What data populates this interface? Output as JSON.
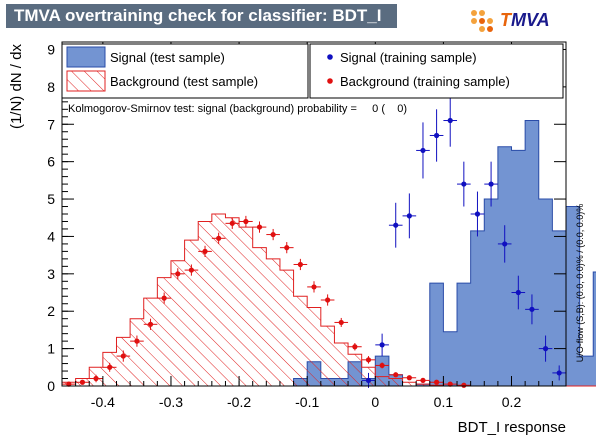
{
  "header": {
    "title": "TMVA overtraining check for classifier: BDT_I"
  },
  "logo": {
    "prefix": "T",
    "suffix": "MVA",
    "accent_color": "#e8640c",
    "dot_color": "#f4a23c"
  },
  "legend": {
    "signal_test": "Signal (test sample)",
    "background_test": "Background (test sample)",
    "signal_train": "Signal (training sample)",
    "background_train": "Background (training sample)"
  },
  "ks_text": "Kolmogorov-Smirnov test: signal (background) probability =     0 (    0)",
  "side_text": "U/O-flow (S,B): (0.0, 0.0)% / (0.0, 0.0)%",
  "colors": {
    "signal_fill": "#7394d2",
    "signal_line": "#2a4ca8",
    "background": "#e02020",
    "train_signal": "#1010c0",
    "train_background": "#e01010",
    "frame": "#000000"
  },
  "chart_data": {
    "type": "histogram",
    "xlabel": "BDT_I response",
    "ylabel": "(1/N) dN / dx",
    "xlim": [
      -0.46,
      0.28
    ],
    "ylim": [
      0,
      9.2
    ],
    "x_ticks": [
      -0.4,
      -0.3,
      -0.2,
      -0.1,
      0,
      0.1,
      0.2
    ],
    "x_tick_labels": [
      "-0.4",
      "-0.3",
      "-0.2",
      "-0.1",
      "0",
      "0.1",
      "0.2"
    ],
    "y_ticks": [
      0,
      1,
      2,
      3,
      4,
      5,
      6,
      7,
      8,
      9
    ],
    "y_tick_labels": [
      "0",
      "1",
      "2",
      "3",
      "4",
      "5",
      "6",
      "7",
      "8",
      "9"
    ],
    "bin_edges_start": -0.46,
    "bin_width": 0.02,
    "series": [
      {
        "name": "Signal (test sample)",
        "kind": "histogram_filled",
        "values": [
          0,
          0,
          0,
          0,
          0,
          0,
          0,
          0,
          0,
          0,
          0,
          0,
          0,
          0,
          0,
          0,
          0,
          0.2,
          0.65,
          0.2,
          0.2,
          0.65,
          0.2,
          0.8,
          0.3,
          0,
          0.05,
          2.75,
          1.45,
          2.75,
          4.15,
          5.0,
          6.4,
          6.3,
          7.1,
          5.0,
          4.15,
          4.8,
          0.8,
          3.05,
          0.8,
          1.75,
          0
        ]
      },
      {
        "name": "Background (test sample)",
        "kind": "histogram_hatched",
        "values": [
          0.1,
          0.2,
          0.5,
          0.9,
          1.3,
          1.8,
          2.35,
          2.9,
          3.35,
          3.9,
          4.4,
          4.6,
          4.5,
          4.25,
          3.7,
          3.4,
          3.1,
          2.4,
          2.1,
          1.6,
          1.15,
          0.85,
          0.5,
          0.25,
          0.2,
          0.1,
          0.05,
          0.02,
          0,
          0,
          0,
          0,
          0,
          0,
          0,
          0,
          0,
          0,
          0,
          0,
          0,
          0,
          0
        ]
      },
      {
        "name": "Signal (training sample)",
        "kind": "points",
        "x": [
          -0.01,
          0.01,
          0.03,
          0.05,
          0.07,
          0.09,
          0.11,
          0.13,
          0.15,
          0.17,
          0.19,
          0.21,
          0.23,
          0.25,
          0.27
        ],
        "y": [
          0.15,
          1.1,
          4.3,
          4.55,
          6.3,
          6.7,
          7.1,
          5.4,
          4.6,
          5.4,
          3.8,
          2.5,
          2.05,
          1.0,
          0.35
        ],
        "err": [
          0.2,
          0.3,
          0.6,
          0.6,
          0.75,
          0.7,
          0.7,
          0.6,
          0.6,
          0.6,
          0.5,
          0.45,
          0.4,
          0.35,
          0.2
        ]
      },
      {
        "name": "Background (training sample)",
        "kind": "points",
        "x": [
          -0.45,
          -0.43,
          -0.41,
          -0.39,
          -0.37,
          -0.35,
          -0.33,
          -0.31,
          -0.29,
          -0.27,
          -0.25,
          -0.23,
          -0.21,
          -0.19,
          -0.17,
          -0.15,
          -0.13,
          -0.11,
          -0.09,
          -0.07,
          -0.05,
          -0.03,
          -0.01,
          0.01,
          0.03,
          0.05,
          0.07,
          0.09,
          0.11,
          0.13
        ],
        "y": [
          0.05,
          0.1,
          0.2,
          0.5,
          0.8,
          1.2,
          1.65,
          2.35,
          3.0,
          3.1,
          3.6,
          3.95,
          4.35,
          4.4,
          4.25,
          4.05,
          3.7,
          3.25,
          2.65,
          2.3,
          1.7,
          1.05,
          0.7,
          0.55,
          0.3,
          0.22,
          0.15,
          0.1,
          0.05,
          0.02
        ],
        "err": [
          0.05,
          0.05,
          0.1,
          0.12,
          0.15,
          0.15,
          0.15,
          0.15,
          0.15,
          0.15,
          0.15,
          0.15,
          0.15,
          0.15,
          0.15,
          0.15,
          0.15,
          0.15,
          0.15,
          0.15,
          0.12,
          0.1,
          0.1,
          0.08,
          0.06,
          0.05,
          0.05,
          0.04,
          0.03,
          0.02
        ]
      }
    ]
  }
}
